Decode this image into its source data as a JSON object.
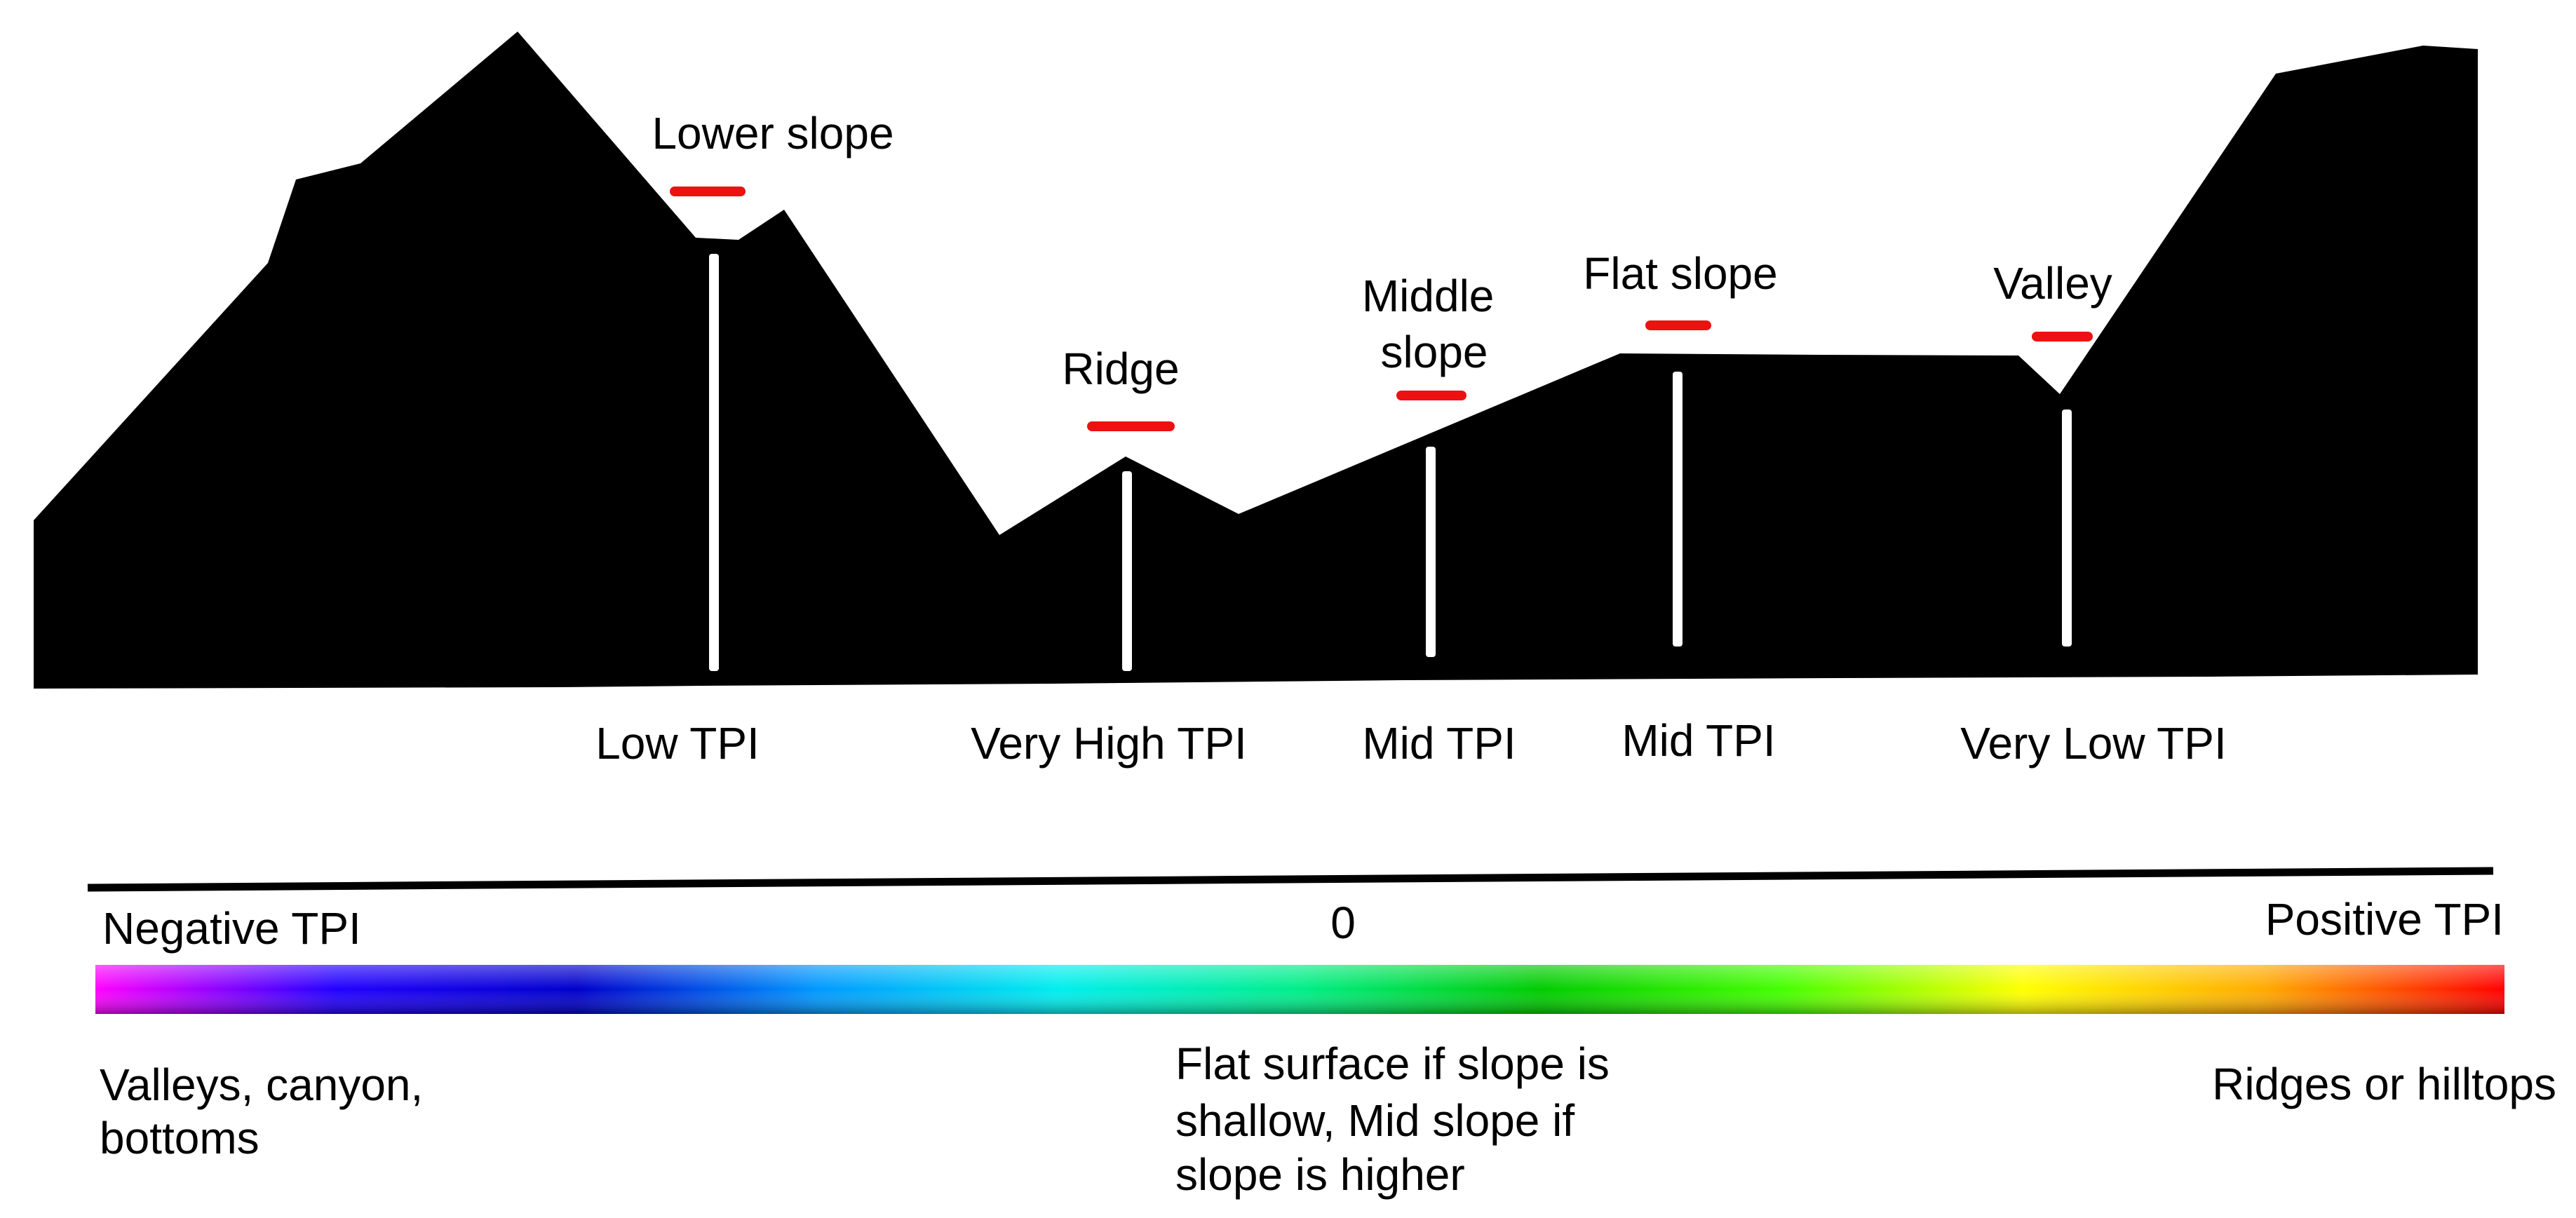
{
  "profile": {
    "landforms": [
      {
        "label": [
          "Lower slope"
        ],
        "tpi": "Low TPI"
      },
      {
        "label": [
          "Ridge"
        ],
        "tpi": "Very High TPI"
      },
      {
        "label": [
          "Middle",
          "slope"
        ],
        "tpi": "Mid TPI"
      },
      {
        "label": [
          "Flat slope"
        ],
        "tpi": "Mid TPI"
      },
      {
        "label": [
          "Valley"
        ],
        "tpi": "Very Low TPI"
      }
    ]
  },
  "scale": {
    "left_label": "Negative TPI",
    "center_label": "0",
    "right_label": "Positive TPI",
    "gradient_colors": [
      "#ff00ff",
      "#2200ff",
      "#0000cc",
      "#0099ff",
      "#00eeee",
      "#00ee88",
      "#00cc00",
      "#44ff00",
      "#ffff00",
      "#ffaa00",
      "#ff0000"
    ],
    "descriptions": {
      "left": [
        "Valleys, canyon,",
        "bottoms"
      ],
      "center": [
        "Flat surface if slope is",
        "shallow, Mid slope if",
        "slope is higher"
      ],
      "right": [
        "Ridges or hilltops"
      ]
    }
  },
  "colors": {
    "terrain": "#000000",
    "marker": "#ee1111",
    "pole": "#ffffff"
  }
}
